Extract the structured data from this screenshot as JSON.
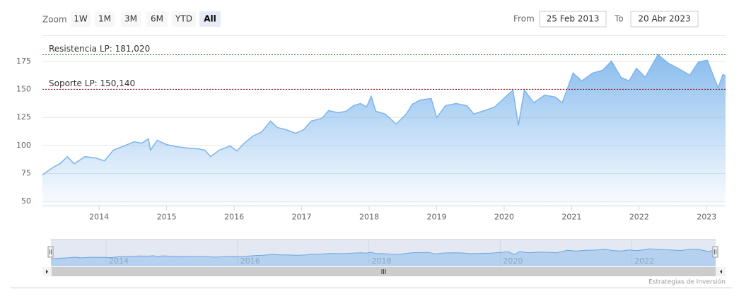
{
  "chart_data": {
    "type": "area",
    "x": [
      2013.16,
      2013.32,
      2013.42,
      2013.53,
      2013.63,
      2013.79,
      2013.95,
      2014.08,
      2014.21,
      2014.37,
      2014.52,
      2014.63,
      2014.73,
      2014.76,
      2014.86,
      2015.0,
      2015.15,
      2015.31,
      2015.47,
      2015.57,
      2015.65,
      2015.78,
      2015.94,
      2016.04,
      2016.15,
      2016.28,
      2016.41,
      2016.54,
      2016.64,
      2016.77,
      2016.91,
      2017.03,
      2017.14,
      2017.3,
      2017.4,
      2017.54,
      2017.66,
      2017.77,
      2017.87,
      2017.96,
      2018.03,
      2018.1,
      2018.24,
      2018.4,
      2018.55,
      2018.64,
      2018.76,
      2018.92,
      2019.0,
      2019.13,
      2019.29,
      2019.45,
      2019.55,
      2019.71,
      2019.86,
      2020.13,
      2020.21,
      2020.3,
      2020.44,
      2020.6,
      2020.76,
      2020.86,
      2021.02,
      2021.15,
      2021.31,
      2021.46,
      2021.59,
      2021.73,
      2021.85,
      2021.96,
      2022.09,
      2022.28,
      2022.43,
      2022.59,
      2022.75,
      2022.88,
      2023.01,
      2023.17,
      2023.24,
      2023.28
    ],
    "values": [
      73.7,
      80.6,
      83.7,
      90.0,
      83.6,
      90.0,
      88.8,
      86.3,
      95.8,
      99.6,
      103.3,
      102.0,
      105.9,
      95.8,
      104.6,
      100.8,
      98.9,
      97.7,
      97.0,
      95.8,
      90.1,
      95.8,
      99.6,
      95.1,
      102.0,
      108.4,
      112.2,
      121.7,
      116.0,
      114.1,
      110.9,
      114.1,
      121.7,
      124.2,
      131.1,
      129.2,
      130.5,
      135.5,
      137.4,
      134.3,
      143.7,
      130.5,
      128.0,
      119.1,
      128.0,
      136.8,
      140.6,
      141.9,
      124.8,
      135.5,
      137.4,
      135.5,
      128.0,
      131.1,
      134.3,
      149.4,
      117.9,
      149.4,
      138.1,
      145.0,
      143.1,
      138.1,
      164.6,
      157.6,
      164.6,
      167.1,
      175.3,
      160.8,
      157.6,
      168.9,
      160.8,
      181.0,
      173.4,
      168.4,
      162.7,
      174.7,
      176.0,
      151.3,
      163.3,
      162.0
    ],
    "color": "#7cb5ec",
    "xlim": [
      2013.16,
      2023.28
    ],
    "ylim": [
      46,
      197
    ],
    "xticks": [
      2014,
      2015,
      2016,
      2017,
      2018,
      2019,
      2020,
      2021,
      2022,
      2023
    ],
    "yticks": [
      50,
      75,
      100,
      125,
      150,
      175
    ],
    "grid": true,
    "plot_lines": [
      {
        "label": "Resistencia LP: 181,020",
        "value": 181.02,
        "color": "#1a7a1a"
      },
      {
        "label": "Soporte LP: 150,140",
        "value": 150.14,
        "color": "#8b0000"
      }
    ],
    "navigator": {
      "xticks": [
        2014,
        2016,
        2018,
        2020,
        2022
      ]
    }
  },
  "range_selector": {
    "zoom_label": "Zoom",
    "buttons": [
      "1W",
      "1M",
      "3M",
      "6M",
      "YTD",
      "All"
    ],
    "selected": 5,
    "from_label": "From",
    "from": "25 Feb 2013",
    "to_label": "To",
    "to": "20 Abr 2023"
  },
  "credit": "Estrategias de Inversión"
}
